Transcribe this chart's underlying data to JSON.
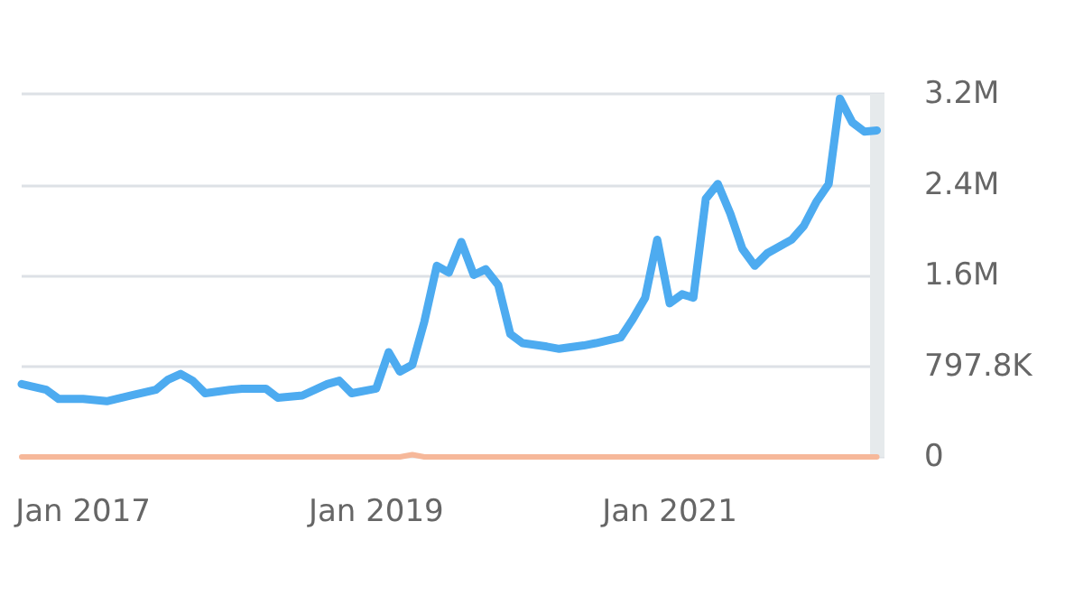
{
  "chart_data": {
    "type": "line",
    "grid": "y",
    "marker": "none",
    "line_style": "solid",
    "xlim": [
      "2016-08",
      "2022-06-20"
    ],
    "xticks": [
      {
        "value": "2017-01",
        "label": "Jan 2017"
      },
      {
        "value": "2019-01",
        "label": "Jan 2019"
      },
      {
        "value": "2021-01",
        "label": "Jan 2021"
      }
    ],
    "ylim": [
      0,
      3191200
    ],
    "yticks": [
      0,
      {
        "value": 797800,
        "label": "797.8K"
      },
      {
        "value": 1595600,
        "label": "1.6M"
      },
      {
        "value": 2393400,
        "label": "2.4M"
      },
      {
        "value": 3191200,
        "label": "3.2M"
      }
    ],
    "bands": [
      {
        "axis": "x",
        "from": "2022-05-15",
        "to": "2022-06-20",
        "label": null,
        "color": "#e6eaec"
      }
    ],
    "series": [
      {
        "color": "#4dabf0",
        "x": [
          "2016-08",
          "2016-10",
          "2016-11",
          "2017-01",
          "2017-03",
          "2017-05",
          "2017-07",
          "2017-08",
          "2017-09",
          "2017-10",
          "2017-11",
          "2018-01",
          "2018-02",
          "2018-04",
          "2018-05",
          "2018-07",
          "2018-09",
          "2018-10",
          "2018-11",
          "2019-01",
          "2019-02",
          "2019-03",
          "2019-04",
          "2019-05",
          "2019-06",
          "2019-07",
          "2019-08",
          "2019-09",
          "2019-10",
          "2019-11",
          "2019-12",
          "2020-01",
          "2020-03",
          "2020-04",
          "2020-06",
          "2020-07",
          "2020-09",
          "2020-10",
          "2020-11",
          "2020-12",
          "2021-01",
          "2021-02",
          "2021-03",
          "2021-04",
          "2021-05",
          "2021-06",
          "2021-07",
          "2021-08",
          "2021-09",
          "2021-11",
          "2021-12",
          "2022-01",
          "2022-02",
          "2022-03",
          "2022-04",
          "2022-05",
          "2022-06"
        ],
        "values": [
          640000,
          590000,
          510000,
          510000,
          490000,
          540000,
          590000,
          680000,
          730000,
          670000,
          560000,
          590000,
          600000,
          600000,
          520000,
          540000,
          640000,
          670000,
          560000,
          600000,
          920000,
          750000,
          810000,
          1190000,
          1680000,
          1620000,
          1890000,
          1600000,
          1650000,
          1510000,
          1080000,
          1000000,
          970000,
          950000,
          980000,
          1000000,
          1050000,
          1210000,
          1400000,
          1910000,
          1350000,
          1430000,
          1400000,
          2270000,
          2400000,
          2140000,
          1830000,
          1680000,
          1790000,
          1910000,
          2030000,
          2240000,
          2400000,
          3150000,
          2940000,
          2860000,
          2870000
        ]
      },
      {
        "color": "#f6b89a",
        "x": [
          "2016-08",
          "2019-03",
          "2019-04",
          "2019-05",
          "2022-06"
        ],
        "values": [
          0,
          0,
          20000,
          0,
          0
        ]
      }
    ]
  }
}
